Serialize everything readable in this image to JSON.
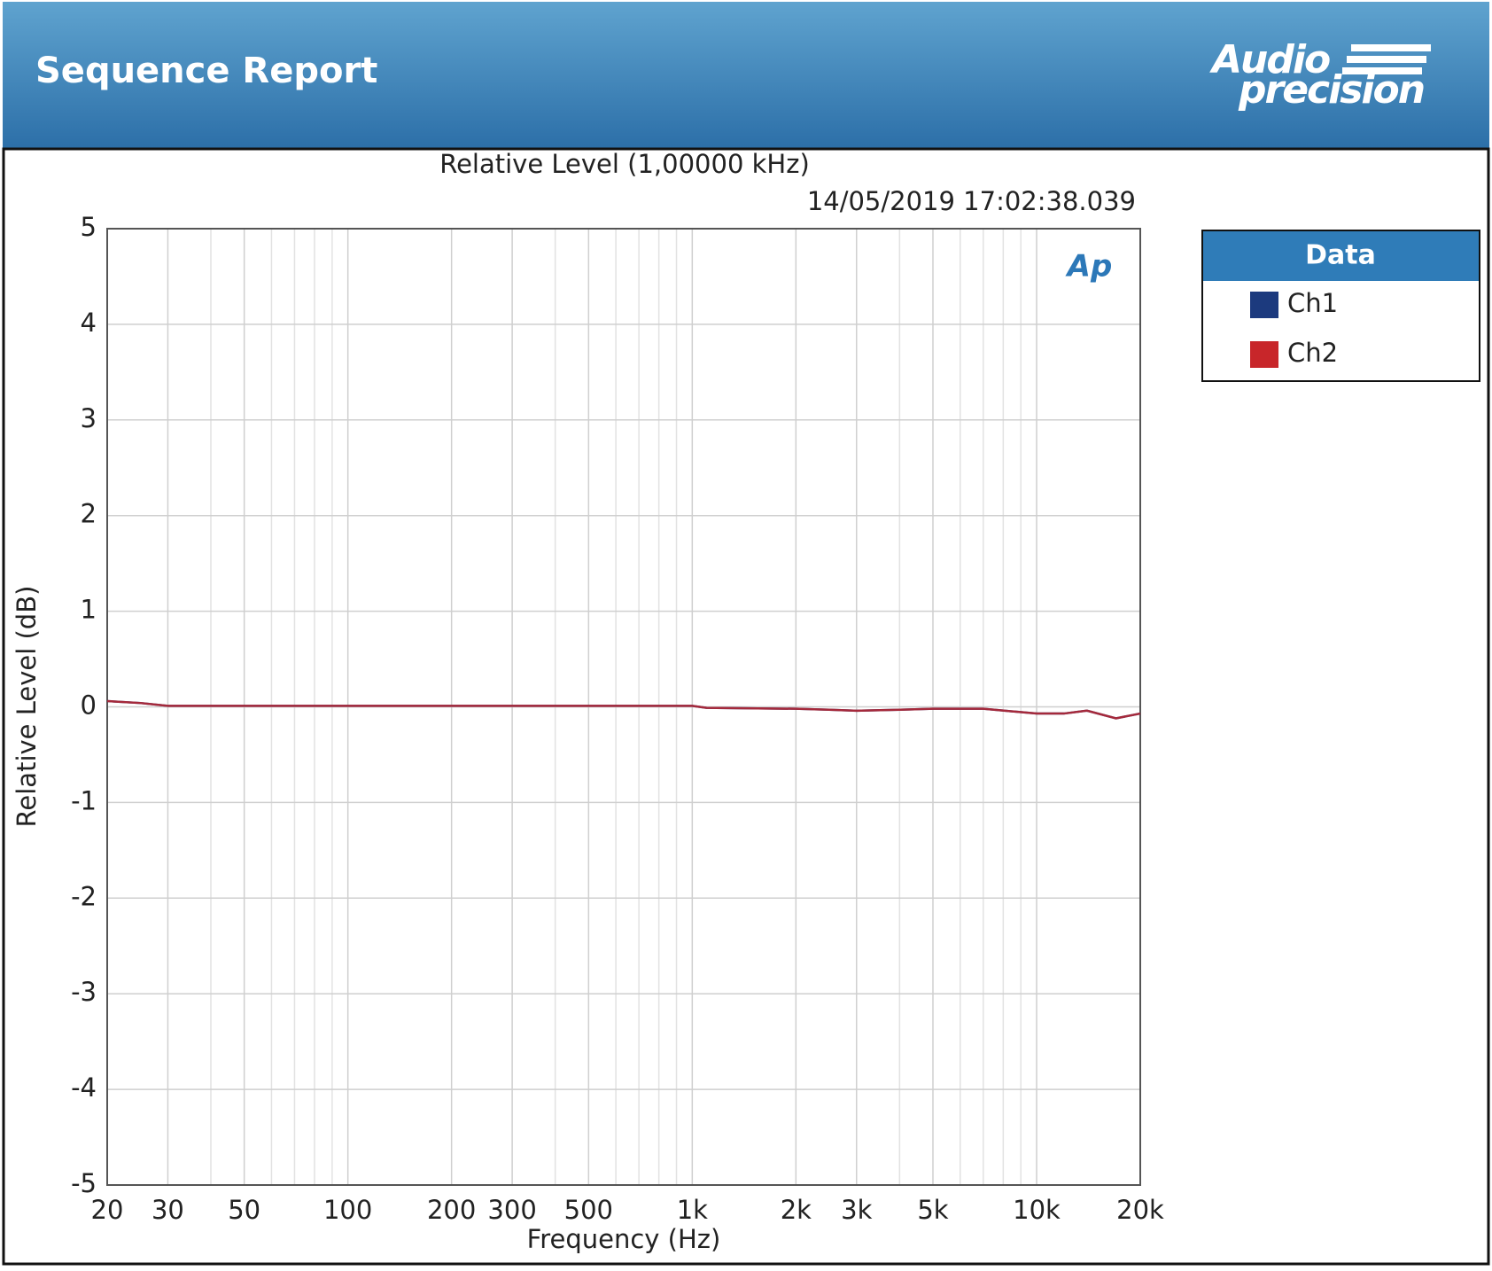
{
  "header": {
    "title": "Sequence Report",
    "logo_top": "Audio",
    "logo_bottom": "precision"
  },
  "chart_data": {
    "type": "line",
    "title": "Relative Level (1,00000 kHz)",
    "subtitle": "14/05/2019 17:02:38.039",
    "watermark": "Ap",
    "x_label": "Frequency (Hz)",
    "y_label": "Relative Level (dB)",
    "x_scale": "log",
    "grid": true,
    "xlim": [
      20,
      20000
    ],
    "xticks": [
      20,
      30,
      50,
      100,
      200,
      300,
      500,
      {
        "value": 1000,
        "label": "1k"
      },
      {
        "value": 2000,
        "label": "2k"
      },
      {
        "value": 3000,
        "label": "3k"
      },
      {
        "value": 5000,
        "label": "5k"
      },
      {
        "value": 10000,
        "label": "10k"
      },
      {
        "value": 20000,
        "label": "20k"
      }
    ],
    "xticks_minor": [
      40,
      60,
      70,
      80,
      90,
      400,
      600,
      700,
      800,
      900,
      4000,
      6000,
      7000,
      8000,
      9000
    ],
    "ylim": [
      -5,
      5
    ],
    "yticks": [
      -5,
      -4,
      -3,
      -2,
      -1,
      0,
      1,
      2,
      3,
      4,
      5
    ],
    "legend_title": "Data",
    "legend": "right",
    "x": [
      20,
      25,
      30,
      40,
      50,
      70,
      100,
      200,
      500,
      1000,
      1100,
      2000,
      2500,
      3000,
      4000,
      5000,
      7000,
      10000,
      12000,
      14000,
      17000,
      20000
    ],
    "series": [
      {
        "name": "Ch1",
        "color": "#1c3a7e",
        "values": [
          0.06,
          0.04,
          0.01,
          0.01,
          0.01,
          0.01,
          0.01,
          0.01,
          0.01,
          0.01,
          -0.01,
          -0.02,
          -0.03,
          -0.04,
          -0.03,
          -0.02,
          -0.02,
          -0.07,
          -0.07,
          -0.04,
          -0.12,
          -0.07
        ]
      },
      {
        "name": "Ch2",
        "color": "#c8262a",
        "values": [
          0.06,
          0.04,
          0.01,
          0.01,
          0.01,
          0.01,
          0.01,
          0.01,
          0.01,
          0.01,
          -0.01,
          -0.02,
          -0.03,
          -0.04,
          -0.03,
          -0.02,
          -0.02,
          -0.07,
          -0.07,
          -0.04,
          -0.12,
          -0.07
        ]
      }
    ]
  }
}
